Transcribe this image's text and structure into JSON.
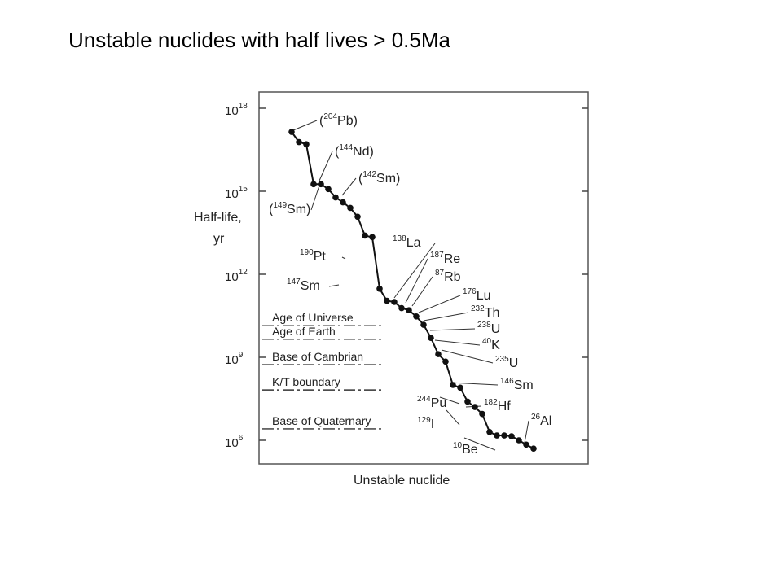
{
  "slide": {
    "title": "Unstable nuclides with half lives > 0.5Ma"
  },
  "chart_data": {
    "type": "scatter",
    "ylabel_line1": "Half-life,",
    "ylabel_line2": "yr",
    "xlabel": "Unstable nuclide",
    "y_scale": "log",
    "ylim": [
      300000,
      1e+18
    ],
    "yticks": [
      {
        "base": "10",
        "exp": "18",
        "value": 1e+18
      },
      {
        "base": "10",
        "exp": "15",
        "value": 1000000000000000.0
      },
      {
        "base": "10",
        "exp": "12",
        "value": 1000000000000.0
      },
      {
        "base": "10",
        "exp": "9",
        "value": 1000000000.0
      },
      {
        "base": "10",
        "exp": "6",
        "value": 1000000.0
      }
    ],
    "points": [
      {
        "rank": 1,
        "half_life": 1.4e+17
      },
      {
        "rank": 2,
        "half_life": 6e+16
      },
      {
        "rank": 3,
        "half_life": 5e+16
      },
      {
        "rank": 4,
        "half_life": 1800000000000000.0
      },
      {
        "rank": 5,
        "half_life": 1800000000000000.0
      },
      {
        "rank": 6,
        "half_life": 1200000000000000.0
      },
      {
        "rank": 7,
        "half_life": 600000000000000.0
      },
      {
        "rank": 8,
        "half_life": 400000000000000.0
      },
      {
        "rank": 9,
        "half_life": 250000000000000.0
      },
      {
        "rank": 10,
        "half_life": 120000000000000.0
      },
      {
        "rank": 11,
        "half_life": 25000000000000.0
      },
      {
        "rank": 12,
        "half_life": 22000000000000.0
      },
      {
        "rank": 13,
        "half_life": 300000000000.0
      },
      {
        "rank": 14,
        "half_life": 110000000000.0
      },
      {
        "rank": 15,
        "half_life": 100000000000.0
      },
      {
        "rank": 16,
        "half_life": 60000000000.0
      },
      {
        "rank": 17,
        "half_life": 50000000000.0
      },
      {
        "rank": 18,
        "half_life": 30000000000.0
      },
      {
        "rank": 19,
        "half_life": 15000000000.0
      },
      {
        "rank": 20,
        "half_life": 5000000000.0
      },
      {
        "rank": 21,
        "half_life": 1300000000.0
      },
      {
        "rank": 22,
        "half_life": 700000000.0
      },
      {
        "rank": 23,
        "half_life": 100000000.0
      },
      {
        "rank": 24,
        "half_life": 80000000.0
      },
      {
        "rank": 25,
        "half_life": 25000000.0
      },
      {
        "rank": 26,
        "half_life": 16000000.0
      },
      {
        "rank": 27,
        "half_life": 9000000.0
      },
      {
        "rank": 28,
        "half_life": 2000000.0
      },
      {
        "rank": 29,
        "half_life": 1500000.0
      },
      {
        "rank": 30,
        "half_life": 1500000.0
      },
      {
        "rank": 31,
        "half_life": 1400000.0
      },
      {
        "rank": 32,
        "half_life": 1000000.0
      },
      {
        "rank": 33,
        "half_life": 700000.0
      },
      {
        "rank": 34,
        "half_life": 500000.0
      }
    ],
    "nuclide_labels": [
      {
        "mass": "204",
        "symbol": "Pb",
        "prefix": "(",
        "suffix": ")",
        "point": 1
      },
      {
        "mass": "144",
        "symbol": "Nd",
        "prefix": "(",
        "suffix": ")",
        "point": 4
      },
      {
        "mass": "142",
        "symbol": "Sm",
        "prefix": "(",
        "suffix": ")",
        "point": 7
      },
      {
        "mass": "149",
        "symbol": "Sm",
        "prefix": "(",
        "suffix": ")",
        "point": 5
      },
      {
        "mass": "190",
        "symbol": "Pt",
        "prefix": "",
        "suffix": "",
        "point": 13
      },
      {
        "mass": "147",
        "symbol": "Sm",
        "prefix": "",
        "suffix": "",
        "point": 14
      },
      {
        "mass": "138",
        "symbol": "La",
        "prefix": "",
        "suffix": "",
        "point": 15
      },
      {
        "mass": "187",
        "symbol": "Re",
        "prefix": "",
        "suffix": "",
        "point": 16
      },
      {
        "mass": "87",
        "symbol": "Rb",
        "prefix": "",
        "suffix": "",
        "point": 17
      },
      {
        "mass": "176",
        "symbol": "Lu",
        "prefix": "",
        "suffix": "",
        "point": 18
      },
      {
        "mass": "232",
        "symbol": "Th",
        "prefix": "",
        "suffix": "",
        "point": 19
      },
      {
        "mass": "238",
        "symbol": "U",
        "prefix": "",
        "suffix": "",
        "point": 20
      },
      {
        "mass": "40",
        "symbol": "K",
        "prefix": "",
        "suffix": "",
        "point": 21
      },
      {
        "mass": "235",
        "symbol": "U",
        "prefix": "",
        "suffix": "",
        "point": 22
      },
      {
        "mass": "146",
        "symbol": "Sm",
        "prefix": "",
        "suffix": "",
        "point": 23
      },
      {
        "mass": "244",
        "symbol": "Pu",
        "prefix": "",
        "suffix": "",
        "point": 24
      },
      {
        "mass": "182",
        "symbol": "Hf",
        "prefix": "",
        "suffix": "",
        "point": 26
      },
      {
        "mass": "129",
        "symbol": "I",
        "prefix": "",
        "suffix": "",
        "point": 25
      },
      {
        "mass": "10",
        "symbol": "Be",
        "prefix": "",
        "suffix": "",
        "point": 29
      },
      {
        "mass": "26",
        "symbol": "Al",
        "prefix": "",
        "suffix": "",
        "point": 34
      }
    ],
    "reference_lines": [
      {
        "label": "Age of Universe",
        "value": 13800000000.0
      },
      {
        "label": "Age of Earth",
        "value": 4500000000.0
      },
      {
        "label": "Base of Cambrian",
        "value": 540000000.0
      },
      {
        "label": "K/T boundary",
        "value": 66000000.0
      },
      {
        "label": "Base of Quaternary",
        "value": 2600000.0
      }
    ],
    "legend": "none",
    "grid": false
  }
}
